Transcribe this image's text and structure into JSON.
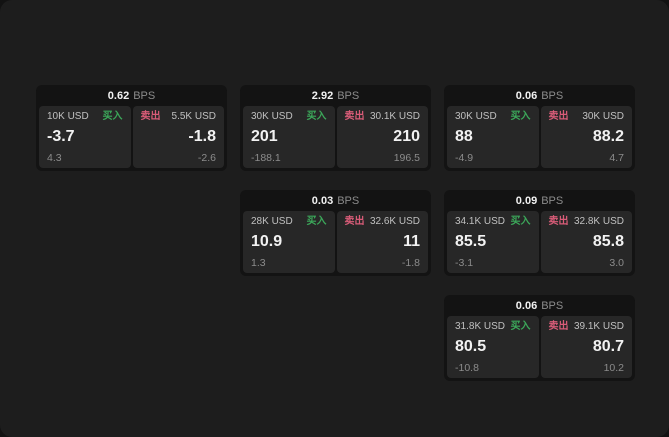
{
  "labels": {
    "buy": "买入",
    "sell": "卖出",
    "bps": "BPS"
  },
  "colors": {
    "background": "#121212",
    "surface": "#1d1d1d",
    "card": "#131313",
    "panel": "#272727",
    "buy_green": "#3ca85a",
    "sell_pink": "#d95c78"
  },
  "cards": [
    {
      "bps": "0.62",
      "grid": {
        "row": 1,
        "col": 1
      },
      "buy": {
        "size": "10K USD",
        "value": "-3.7",
        "sub": "4.3"
      },
      "sell": {
        "size": "5.5K USD",
        "value": "-1.8",
        "sub": "-2.6"
      }
    },
    {
      "bps": "2.92",
      "grid": {
        "row": 1,
        "col": 2
      },
      "buy": {
        "size": "30K USD",
        "value": "201",
        "sub": "-188.1"
      },
      "sell": {
        "size": "30.1K USD",
        "value": "210",
        "sub": "196.5"
      }
    },
    {
      "bps": "0.06",
      "grid": {
        "row": 1,
        "col": 3
      },
      "buy": {
        "size": "30K USD",
        "value": "88",
        "sub": "-4.9"
      },
      "sell": {
        "size": "30K USD",
        "value": "88.2",
        "sub": "4.7"
      }
    },
    {
      "bps": "0.03",
      "grid": {
        "row": 2,
        "col": 2
      },
      "buy": {
        "size": "28K USD",
        "value": "10.9",
        "sub": "1.3"
      },
      "sell": {
        "size": "32.6K USD",
        "value": "11",
        "sub": "-1.8"
      }
    },
    {
      "bps": "0.09",
      "grid": {
        "row": 2,
        "col": 3
      },
      "buy": {
        "size": "34.1K USD",
        "value": "85.5",
        "sub": "-3.1"
      },
      "sell": {
        "size": "32.8K USD",
        "value": "85.8",
        "sub": "3.0"
      }
    },
    {
      "bps": "0.06",
      "grid": {
        "row": 3,
        "col": 3
      },
      "buy": {
        "size": "31.8K USD",
        "value": "80.5",
        "sub": "-10.8"
      },
      "sell": {
        "size": "39.1K USD",
        "value": "80.7",
        "sub": "10.2"
      }
    }
  ]
}
